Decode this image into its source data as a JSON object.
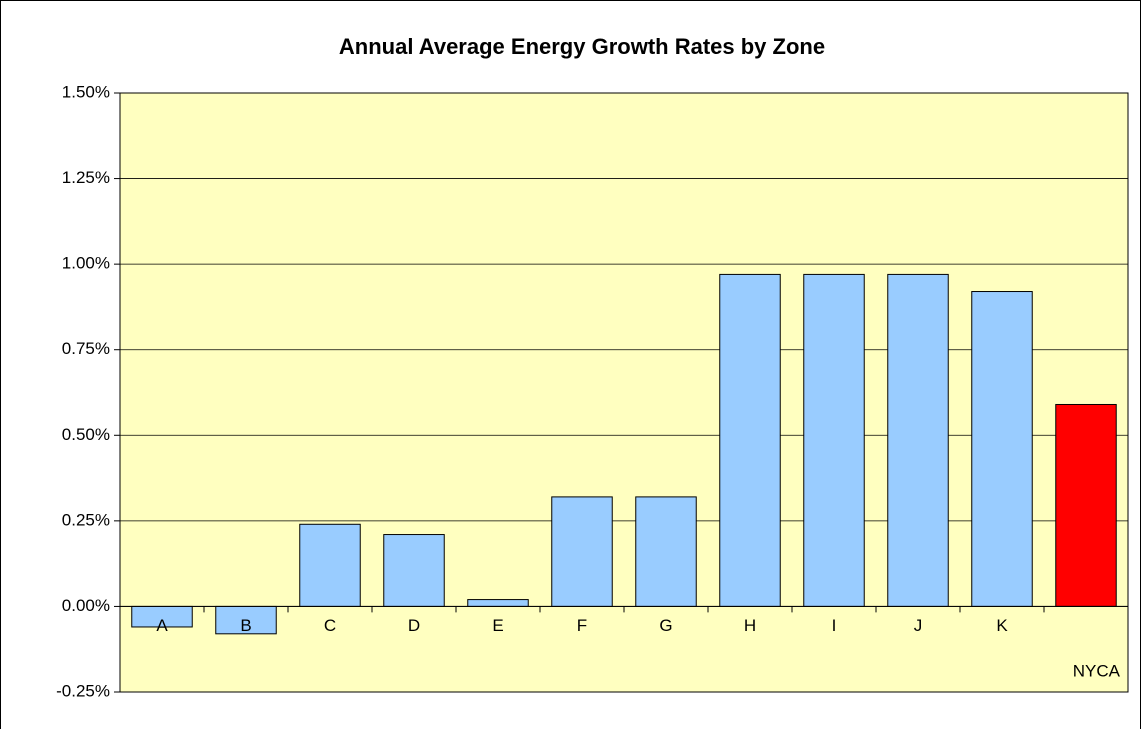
{
  "chart_data": {
    "type": "bar",
    "title": "Annual Average Energy Growth Rates by Zone",
    "categories": [
      "A",
      "B",
      "C",
      "D",
      "E",
      "F",
      "G",
      "H",
      "I",
      "J",
      "K",
      "NYCA"
    ],
    "values": [
      -0.06,
      -0.08,
      0.24,
      0.21,
      0.02,
      0.32,
      0.32,
      0.97,
      0.97,
      0.97,
      0.92,
      0.59
    ],
    "colors": [
      "#99ccff",
      "#99ccff",
      "#99ccff",
      "#99ccff",
      "#99ccff",
      "#99ccff",
      "#99ccff",
      "#99ccff",
      "#99ccff",
      "#99ccff",
      "#99ccff",
      "#ff0000"
    ],
    "ylim": [
      -0.25,
      1.5
    ],
    "yticks": [
      {
        "value": -0.25,
        "label": "-0.25%"
      },
      {
        "value": 0,
        "label": "0.00%"
      },
      {
        "value": 0.25,
        "label": "0.25%"
      },
      {
        "value": 0.5,
        "label": "0.50%"
      },
      {
        "value": 0.75,
        "label": "0.75%"
      },
      {
        "value": 1,
        "label": "1.00%"
      },
      {
        "value": 1.25,
        "label": "1.25%"
      },
      {
        "value": 1.5,
        "label": "1.50%"
      }
    ],
    "grid": true
  }
}
